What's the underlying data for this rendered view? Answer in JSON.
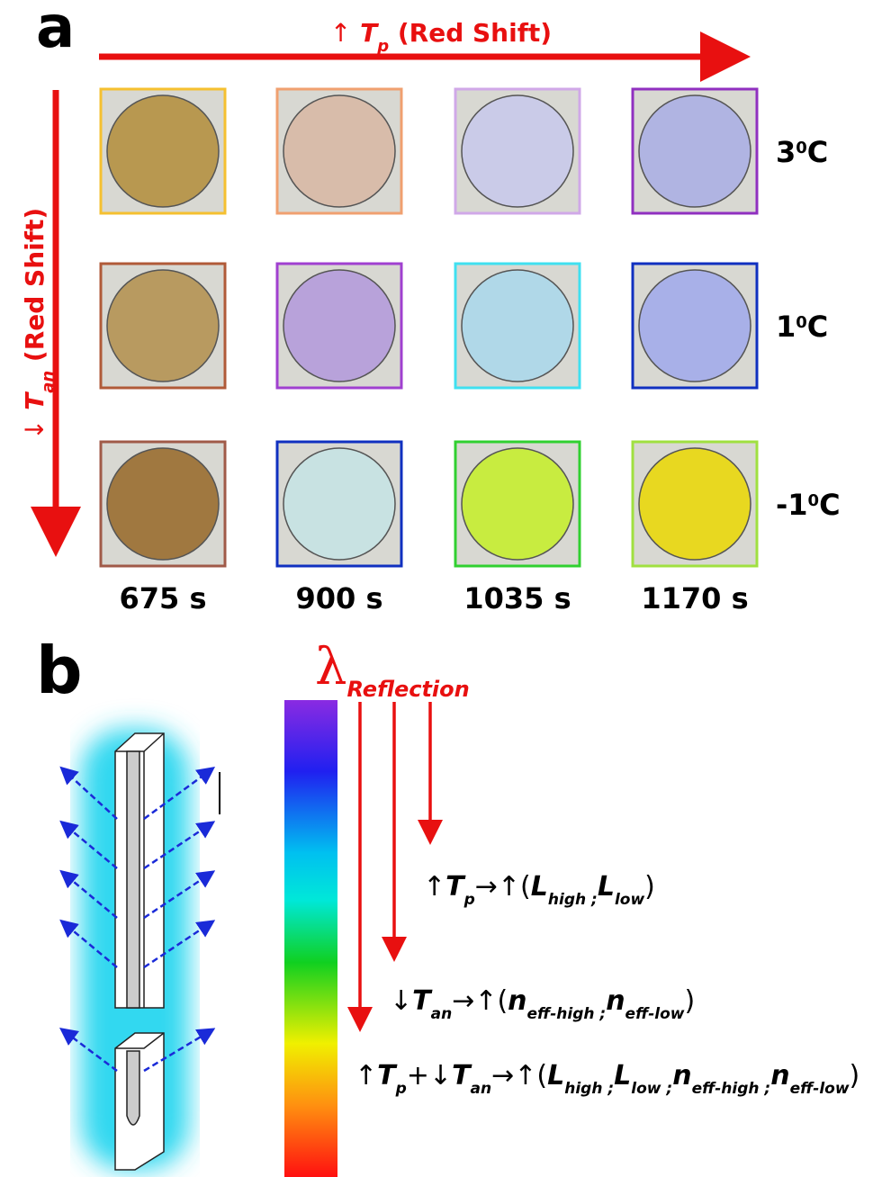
{
  "panel_a": {
    "label": "a",
    "x_axis": {
      "arrow": "↑",
      "symbol": "T",
      "subscript": "p",
      "text": "(Red Shift)"
    },
    "y_axis": {
      "arrow": "↓",
      "symbol": "T",
      "subscript": "an",
      "text": "(Red Shift)"
    },
    "rows": [
      {
        "value": "3",
        "sup": "0",
        "unit": "C"
      },
      {
        "value": "1",
        "sup": "0",
        "unit": "C"
      },
      {
        "value": "-1",
        "sup": "0",
        "unit": "C"
      }
    ],
    "columns": [
      "675 s",
      "900 s",
      "1035 s",
      "1170 s"
    ]
  },
  "panel_b": {
    "label": "b",
    "lambda": {
      "symbol": "λ",
      "subscript": "Reflection"
    },
    "equations": [
      [
        {
          "text": "↑"
        },
        {
          "text": "T",
          "sub": "p"
        },
        {
          "text": "→↑("
        },
        {
          "text": "L",
          "sub": "high ;"
        },
        {
          "text": "L",
          "sub": "low"
        },
        {
          "text": ")"
        }
      ],
      [
        {
          "text": "↓"
        },
        {
          "text": "T",
          "sub": "an"
        },
        {
          "text": "→↑("
        },
        {
          "text": "n",
          "sub": "eff-high ;"
        },
        {
          "text": "n",
          "sub": "eff-low"
        },
        {
          "text": ")"
        }
      ],
      [
        {
          "text": "↑"
        },
        {
          "text": "T",
          "sub": "p"
        },
        {
          "text": "+↓"
        },
        {
          "text": "T",
          "sub": "an"
        },
        {
          "text": "→↑("
        },
        {
          "text": "L",
          "sub": "high ;"
        },
        {
          "text": "L",
          "sub": "low ;"
        },
        {
          "text": "n",
          "sub": "eff-high ;"
        },
        {
          "text": "n",
          "sub": "eff-low"
        },
        {
          "text": ")"
        }
      ]
    ]
  }
}
